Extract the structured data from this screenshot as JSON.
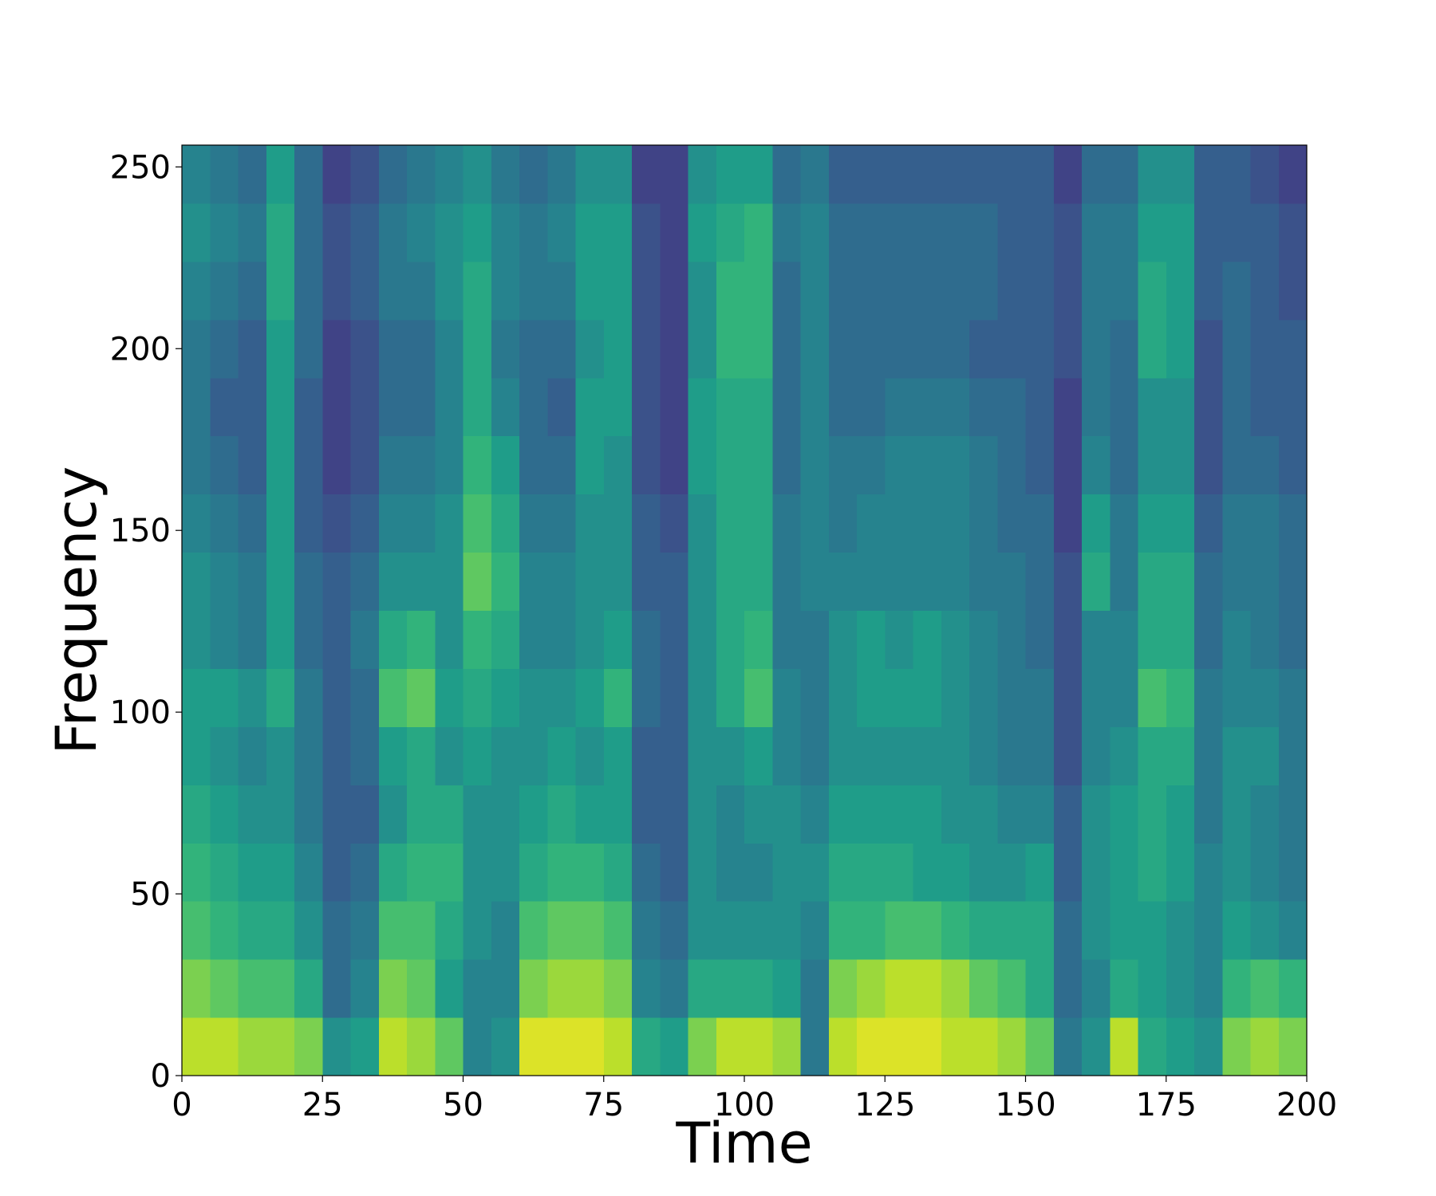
{
  "chart_data": {
    "type": "heatmap",
    "x_label": "Time",
    "y_label": "Frequency",
    "colormap": "viridis",
    "xlim": [
      0,
      200
    ],
    "ylim": [
      0,
      256
    ],
    "xticks": [
      0,
      25,
      50,
      75,
      100,
      125,
      150,
      175,
      200
    ],
    "yticks": [
      0,
      50,
      100,
      150,
      200,
      250
    ],
    "x_bins": [
      0,
      5,
      10,
      15,
      20,
      25,
      30,
      35,
      40,
      45,
      50,
      55,
      60,
      65,
      70,
      75,
      80,
      85,
      90,
      95,
      100,
      105,
      110,
      115,
      120,
      125,
      130,
      135,
      140,
      145,
      150,
      155,
      160,
      165,
      170,
      175,
      180,
      185,
      190,
      195,
      200
    ],
    "y_bins": [
      0,
      16,
      32,
      48,
      64,
      80,
      96,
      112,
      128,
      144,
      160,
      176,
      192,
      208,
      224,
      240,
      256
    ],
    "z": [
      [
        0.9,
        0.8,
        0.7,
        0.65,
        0.6,
        0.55,
        0.55,
        0.5,
        0.5,
        0.45,
        0.4,
        0.4,
        0.4,
        0.45,
        0.5,
        0.45
      ],
      [
        0.9,
        0.75,
        0.65,
        0.6,
        0.55,
        0.5,
        0.55,
        0.45,
        0.45,
        0.4,
        0.35,
        0.3,
        0.35,
        0.4,
        0.45,
        0.4
      ],
      [
        0.85,
        0.7,
        0.6,
        0.55,
        0.5,
        0.45,
        0.5,
        0.4,
        0.4,
        0.35,
        0.3,
        0.3,
        0.3,
        0.35,
        0.4,
        0.35
      ],
      [
        0.85,
        0.7,
        0.6,
        0.55,
        0.5,
        0.5,
        0.6,
        0.55,
        0.55,
        0.55,
        0.55,
        0.55,
        0.55,
        0.6,
        0.6,
        0.55
      ],
      [
        0.8,
        0.6,
        0.5,
        0.45,
        0.4,
        0.4,
        0.4,
        0.35,
        0.35,
        0.3,
        0.3,
        0.3,
        0.35,
        0.35,
        0.35,
        0.35
      ],
      [
        0.5,
        0.35,
        0.35,
        0.3,
        0.3,
        0.3,
        0.3,
        0.3,
        0.3,
        0.25,
        0.2,
        0.2,
        0.2,
        0.25,
        0.25,
        0.2
      ],
      [
        0.55,
        0.45,
        0.4,
        0.35,
        0.3,
        0.35,
        0.35,
        0.4,
        0.35,
        0.3,
        0.25,
        0.25,
        0.25,
        0.3,
        0.3,
        0.25
      ],
      [
        0.9,
        0.8,
        0.7,
        0.6,
        0.5,
        0.55,
        0.7,
        0.6,
        0.5,
        0.45,
        0.4,
        0.35,
        0.35,
        0.4,
        0.4,
        0.35
      ],
      [
        0.85,
        0.75,
        0.7,
        0.65,
        0.6,
        0.6,
        0.75,
        0.65,
        0.5,
        0.45,
        0.4,
        0.35,
        0.35,
        0.4,
        0.45,
        0.4
      ],
      [
        0.75,
        0.55,
        0.6,
        0.65,
        0.6,
        0.5,
        0.55,
        0.5,
        0.5,
        0.5,
        0.45,
        0.45,
        0.45,
        0.5,
        0.5,
        0.45
      ],
      [
        0.45,
        0.45,
        0.5,
        0.5,
        0.5,
        0.55,
        0.6,
        0.65,
        0.75,
        0.7,
        0.65,
        0.6,
        0.6,
        0.6,
        0.55,
        0.5
      ],
      [
        0.5,
        0.45,
        0.45,
        0.5,
        0.5,
        0.5,
        0.55,
        0.6,
        0.65,
        0.6,
        0.55,
        0.45,
        0.4,
        0.45,
        0.45,
        0.4
      ],
      [
        0.95,
        0.8,
        0.7,
        0.6,
        0.55,
        0.5,
        0.5,
        0.45,
        0.45,
        0.4,
        0.35,
        0.35,
        0.35,
        0.4,
        0.4,
        0.35
      ],
      [
        0.95,
        0.85,
        0.75,
        0.65,
        0.6,
        0.55,
        0.5,
        0.45,
        0.45,
        0.4,
        0.35,
        0.3,
        0.35,
        0.4,
        0.45,
        0.4
      ],
      [
        0.95,
        0.85,
        0.75,
        0.65,
        0.55,
        0.5,
        0.55,
        0.5,
        0.5,
        0.5,
        0.55,
        0.55,
        0.5,
        0.55,
        0.55,
        0.5
      ],
      [
        0.9,
        0.8,
        0.7,
        0.6,
        0.55,
        0.55,
        0.65,
        0.55,
        0.5,
        0.5,
        0.5,
        0.55,
        0.55,
        0.55,
        0.55,
        0.5
      ],
      [
        0.6,
        0.45,
        0.4,
        0.35,
        0.3,
        0.3,
        0.35,
        0.35,
        0.3,
        0.3,
        0.25,
        0.25,
        0.25,
        0.25,
        0.25,
        0.2
      ],
      [
        0.55,
        0.4,
        0.35,
        0.3,
        0.3,
        0.3,
        0.3,
        0.3,
        0.3,
        0.25,
        0.2,
        0.2,
        0.2,
        0.2,
        0.2,
        0.2
      ],
      [
        0.8,
        0.6,
        0.5,
        0.5,
        0.5,
        0.5,
        0.5,
        0.5,
        0.5,
        0.5,
        0.55,
        0.55,
        0.5,
        0.5,
        0.55,
        0.5
      ],
      [
        0.9,
        0.6,
        0.5,
        0.45,
        0.45,
        0.5,
        0.6,
        0.6,
        0.6,
        0.6,
        0.6,
        0.6,
        0.65,
        0.65,
        0.6,
        0.55
      ],
      [
        0.9,
        0.6,
        0.5,
        0.45,
        0.5,
        0.55,
        0.7,
        0.65,
        0.6,
        0.6,
        0.6,
        0.6,
        0.65,
        0.65,
        0.65,
        0.55
      ],
      [
        0.85,
        0.55,
        0.5,
        0.5,
        0.5,
        0.45,
        0.45,
        0.4,
        0.4,
        0.4,
        0.35,
        0.35,
        0.35,
        0.35,
        0.4,
        0.35
      ],
      [
        0.4,
        0.4,
        0.45,
        0.5,
        0.45,
        0.4,
        0.4,
        0.4,
        0.45,
        0.45,
        0.45,
        0.45,
        0.45,
        0.45,
        0.45,
        0.4
      ],
      [
        0.9,
        0.8,
        0.65,
        0.6,
        0.55,
        0.5,
        0.5,
        0.5,
        0.45,
        0.4,
        0.4,
        0.35,
        0.35,
        0.35,
        0.35,
        0.3
      ],
      [
        0.95,
        0.85,
        0.65,
        0.6,
        0.55,
        0.5,
        0.55,
        0.55,
        0.45,
        0.45,
        0.4,
        0.35,
        0.35,
        0.35,
        0.35,
        0.3
      ],
      [
        0.95,
        0.9,
        0.7,
        0.6,
        0.55,
        0.5,
        0.55,
        0.5,
        0.45,
        0.45,
        0.45,
        0.4,
        0.35,
        0.35,
        0.35,
        0.3
      ],
      [
        0.95,
        0.9,
        0.7,
        0.55,
        0.55,
        0.5,
        0.55,
        0.55,
        0.45,
        0.45,
        0.45,
        0.4,
        0.35,
        0.35,
        0.35,
        0.3
      ],
      [
        0.9,
        0.85,
        0.65,
        0.55,
        0.5,
        0.5,
        0.5,
        0.5,
        0.45,
        0.45,
        0.45,
        0.4,
        0.35,
        0.35,
        0.35,
        0.3
      ],
      [
        0.9,
        0.75,
        0.6,
        0.5,
        0.5,
        0.45,
        0.45,
        0.45,
        0.4,
        0.4,
        0.4,
        0.35,
        0.3,
        0.35,
        0.35,
        0.3
      ],
      [
        0.85,
        0.7,
        0.6,
        0.5,
        0.45,
        0.4,
        0.4,
        0.4,
        0.4,
        0.35,
        0.35,
        0.35,
        0.3,
        0.3,
        0.3,
        0.3
      ],
      [
        0.75,
        0.6,
        0.6,
        0.55,
        0.45,
        0.4,
        0.4,
        0.35,
        0.35,
        0.35,
        0.3,
        0.3,
        0.3,
        0.3,
        0.3,
        0.3
      ],
      [
        0.4,
        0.35,
        0.35,
        0.3,
        0.3,
        0.25,
        0.25,
        0.25,
        0.25,
        0.2,
        0.2,
        0.2,
        0.25,
        0.25,
        0.25,
        0.2
      ],
      [
        0.5,
        0.45,
        0.5,
        0.5,
        0.5,
        0.45,
        0.45,
        0.45,
        0.6,
        0.55,
        0.45,
        0.4,
        0.4,
        0.4,
        0.4,
        0.35
      ],
      [
        0.9,
        0.6,
        0.55,
        0.55,
        0.55,
        0.5,
        0.45,
        0.45,
        0.4,
        0.4,
        0.35,
        0.35,
        0.35,
        0.4,
        0.4,
        0.35
      ],
      [
        0.6,
        0.55,
        0.55,
        0.6,
        0.6,
        0.6,
        0.7,
        0.6,
        0.6,
        0.55,
        0.5,
        0.5,
        0.6,
        0.6,
        0.55,
        0.5
      ],
      [
        0.55,
        0.5,
        0.5,
        0.55,
        0.55,
        0.6,
        0.65,
        0.6,
        0.6,
        0.55,
        0.5,
        0.5,
        0.55,
        0.55,
        0.55,
        0.5
      ],
      [
        0.5,
        0.45,
        0.45,
        0.45,
        0.4,
        0.4,
        0.4,
        0.35,
        0.35,
        0.3,
        0.25,
        0.25,
        0.25,
        0.3,
        0.3,
        0.3
      ],
      [
        0.8,
        0.65,
        0.55,
        0.5,
        0.5,
        0.5,
        0.45,
        0.45,
        0.4,
        0.4,
        0.35,
        0.35,
        0.35,
        0.35,
        0.3,
        0.3
      ],
      [
        0.85,
        0.7,
        0.5,
        0.45,
        0.45,
        0.5,
        0.45,
        0.4,
        0.4,
        0.4,
        0.35,
        0.3,
        0.3,
        0.3,
        0.3,
        0.25
      ],
      [
        0.8,
        0.65,
        0.45,
        0.4,
        0.4,
        0.4,
        0.4,
        0.35,
        0.35,
        0.35,
        0.3,
        0.3,
        0.3,
        0.25,
        0.25,
        0.2
      ]
    ]
  }
}
